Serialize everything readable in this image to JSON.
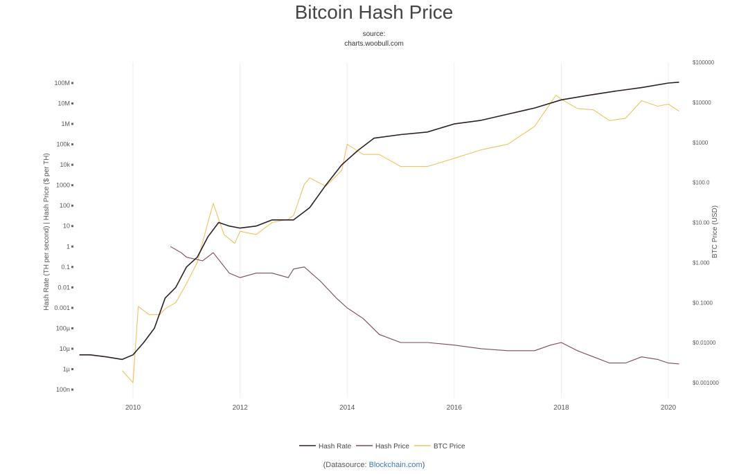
{
  "title": "Bitcoin Hash Price",
  "source_label": "source:",
  "source_value": "charts.woobull.com",
  "datasource_prefix": "(Datasource: ",
  "datasource_link": "Blockchain.com",
  "datasource_suffix": ")",
  "colors": {
    "hash_rate": "#2b1e24",
    "hash_price": "#7a4a55",
    "btc_price": "#f0c060",
    "grid": "#eeeeee"
  },
  "chart_data": {
    "type": "line",
    "title": "Bitcoin Hash Price",
    "y_left_label": "Hash Rate (TH per second) | Hash Price ($ per TH)",
    "y_right_label": "BTC Price (USD)",
    "y_left_scale": "log",
    "y_right_scale": "log",
    "y_left_ticks": [
      "100M",
      "10M",
      "1M",
      "100k",
      "10k",
      "1000",
      "100",
      "10",
      "1",
      "0.1",
      "0.01",
      "0.001",
      "100µ",
      "10µ",
      "1µ",
      "100n"
    ],
    "y_right_ticks": [
      "$100000",
      "$10000",
      "$1000",
      "$100.0",
      "$10.00",
      "$1.000",
      "$0.1000",
      "$0.01000",
      "$0.001000"
    ],
    "x_ticks": [
      "2010",
      "2012",
      "2014",
      "2016",
      "2018",
      "2020"
    ],
    "x_range": [
      2009.0,
      2020.2
    ],
    "y_left_range_log10": [
      -7,
      8
    ],
    "y_right_range_log10": [
      -3,
      5
    ],
    "grid": "vertical",
    "legend_position": "bottom",
    "series": [
      {
        "name": "Hash Rate",
        "axis": "left",
        "x": [
          2009.0,
          2009.2,
          2009.5,
          2009.8,
          2010.0,
          2010.2,
          2010.4,
          2010.6,
          2010.8,
          2011.0,
          2011.2,
          2011.4,
          2011.6,
          2011.8,
          2012.0,
          2012.3,
          2012.6,
          2013.0,
          2013.3,
          2013.6,
          2013.9,
          2014.2,
          2014.5,
          2015.0,
          2015.5,
          2016.0,
          2016.5,
          2017.0,
          2017.5,
          2018.0,
          2018.5,
          2019.0,
          2019.5,
          2020.0,
          2020.2
        ],
        "values": [
          5e-06,
          5e-06,
          4e-06,
          3e-06,
          5e-06,
          2e-05,
          0.0001,
          0.003,
          0.01,
          0.1,
          0.3,
          3,
          15,
          10,
          8,
          10,
          20,
          20,
          80,
          1000,
          10000,
          50000,
          200000,
          300000,
          400000,
          1000000,
          1500000,
          3000000,
          6000000,
          15000000,
          25000000,
          40000000,
          60000000,
          100000000,
          110000000
        ]
      },
      {
        "name": "Hash Price",
        "axis": "left",
        "x": [
          2010.7,
          2010.9,
          2011.0,
          2011.3,
          2011.5,
          2011.8,
          2012.0,
          2012.3,
          2012.6,
          2012.9,
          2013.0,
          2013.2,
          2013.5,
          2013.8,
          2014.0,
          2014.3,
          2014.6,
          2015.0,
          2015.5,
          2016.0,
          2016.5,
          2017.0,
          2017.5,
          2017.8,
          2018.0,
          2018.3,
          2018.6,
          2018.9,
          2019.2,
          2019.5,
          2019.8,
          2020.0,
          2020.2
        ],
        "values": [
          1,
          0.5,
          0.3,
          0.2,
          0.5,
          0.05,
          0.03,
          0.05,
          0.05,
          0.03,
          0.08,
          0.1,
          0.02,
          0.003,
          0.001,
          0.0003,
          5e-05,
          2e-05,
          2e-05,
          1.5e-05,
          1e-05,
          8e-06,
          8e-06,
          1.5e-05,
          2e-05,
          8e-06,
          4e-06,
          2e-06,
          2e-06,
          4e-06,
          3e-06,
          2e-06,
          1.8e-06
        ]
      },
      {
        "name": "BTC Price",
        "axis": "right",
        "x": [
          2009.8,
          2010.0,
          2010.1,
          2010.3,
          2010.5,
          2010.6,
          2010.8,
          2011.0,
          2011.2,
          2011.4,
          2011.5,
          2011.7,
          2011.9,
          2012.0,
          2012.3,
          2012.6,
          2012.9,
          2013.0,
          2013.2,
          2013.3,
          2013.6,
          2013.9,
          2014.0,
          2014.3,
          2014.6,
          2015.0,
          2015.5,
          2016.0,
          2016.5,
          2017.0,
          2017.5,
          2017.9,
          2018.0,
          2018.3,
          2018.6,
          2018.9,
          2019.2,
          2019.5,
          2019.8,
          2020.0,
          2020.2
        ],
        "values": [
          0.002,
          0.001,
          0.08,
          0.05,
          0.05,
          0.07,
          0.1,
          0.3,
          1,
          10,
          30,
          5,
          3,
          6,
          5,
          10,
          12,
          15,
          90,
          130,
          80,
          200,
          900,
          500,
          500,
          250,
          250,
          400,
          650,
          900,
          2500,
          15000,
          12000,
          7000,
          6500,
          3500,
          4000,
          11000,
          8000,
          9000,
          6000
        ]
      }
    ]
  }
}
